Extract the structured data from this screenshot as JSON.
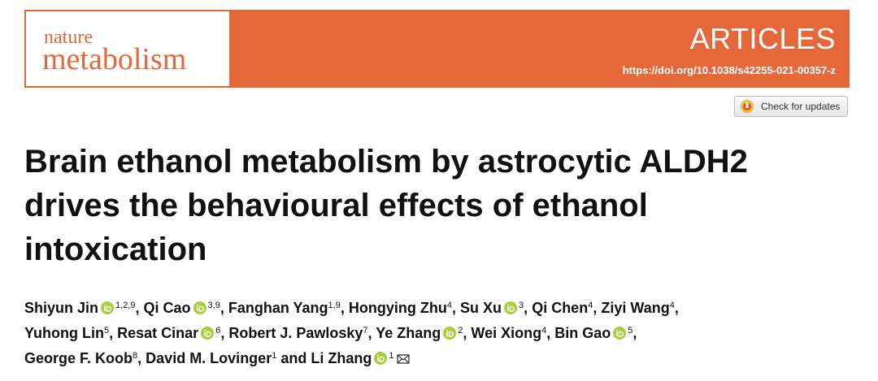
{
  "header": {
    "journal_top": "nature",
    "journal_main": "metabolism",
    "section": "ARTICLES",
    "doi": "https://doi.org/10.1038/s42255-021-00357-z",
    "updates_button": "Check for updates"
  },
  "title_lines": [
    "Brain ethanol metabolism by astrocytic ALDH2",
    "drives the behavioural effects of ethanol",
    "intoxication"
  ],
  "author_lines": [
    [
      {
        "name": "Shiyun Jin",
        "orcid": true,
        "aff": "1,2,9",
        "sep": ","
      },
      {
        "name": "Qi Cao",
        "orcid": true,
        "aff": "3,9",
        "sep": ","
      },
      {
        "name": "Fanghan Yang",
        "aff": "1,9",
        "sep": ","
      },
      {
        "name": "Hongying Zhu",
        "aff": "4",
        "sep": ","
      },
      {
        "name": "Su Xu",
        "orcid": true,
        "aff": "3",
        "sep": ","
      },
      {
        "name": "Qi Chen",
        "aff": "4",
        "sep": ","
      },
      {
        "name": "Ziyi Wang",
        "aff": "4",
        "sep": ","
      }
    ],
    [
      {
        "name": "Yuhong Lin",
        "aff": "5",
        "sep": ","
      },
      {
        "name": "Resat Cinar",
        "orcid": true,
        "aff": "6",
        "sep": ","
      },
      {
        "name": "Robert J. Pawlosky",
        "aff": "7",
        "sep": ","
      },
      {
        "name": "Ye Zhang",
        "orcid": true,
        "aff": "2",
        "sep": ","
      },
      {
        "name": "Wei Xiong",
        "aff": "4",
        "sep": ","
      },
      {
        "name": "Bin Gao",
        "orcid": true,
        "aff": "5",
        "sep": ","
      }
    ],
    [
      {
        "name": "George F. Koob",
        "aff": "8",
        "sep": ","
      },
      {
        "name": "David M. Lovinger",
        "aff": "1",
        "sep": "and"
      },
      {
        "name": "Li Zhang",
        "orcid": true,
        "aff": "1",
        "email": true
      }
    ]
  ]
}
